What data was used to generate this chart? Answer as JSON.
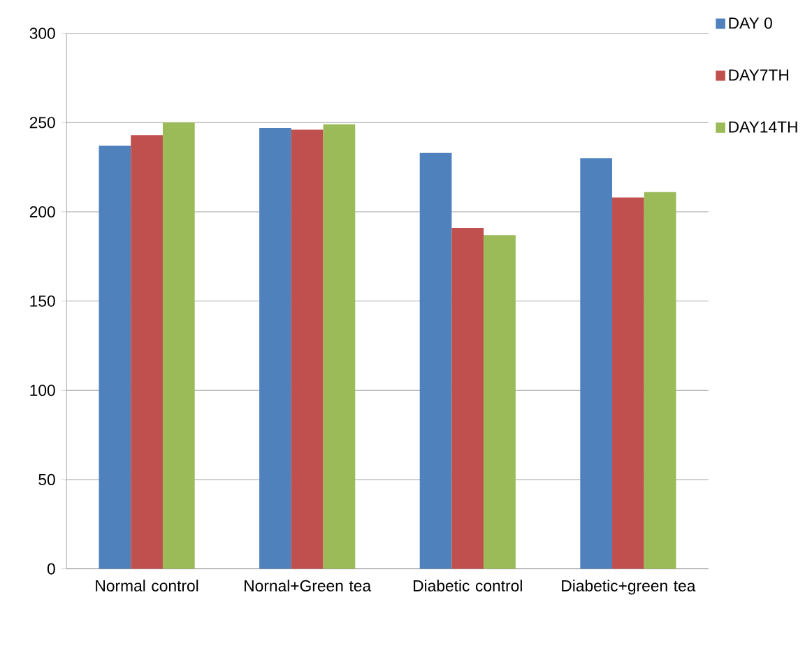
{
  "chart_data": {
    "type": "bar",
    "categories": [
      "Normal control",
      "Nornal+Green tea",
      "Diabetic control",
      "Diabetic+green tea"
    ],
    "series": [
      {
        "name": "DAY 0",
        "color": "#4f81bd",
        "values": [
          237,
          247,
          233,
          230
        ]
      },
      {
        "name": "DAY7TH",
        "color": "#c0504d",
        "values": [
          243,
          246,
          191,
          208
        ]
      },
      {
        "name": "DAY14TH",
        "color": "#9bbb59",
        "values": [
          250,
          249,
          187,
          211
        ]
      }
    ],
    "ylim": [
      0,
      300
    ],
    "yticks": [
      0,
      50,
      100,
      150,
      200,
      250,
      300
    ],
    "grid": "y",
    "legend": "top right"
  }
}
